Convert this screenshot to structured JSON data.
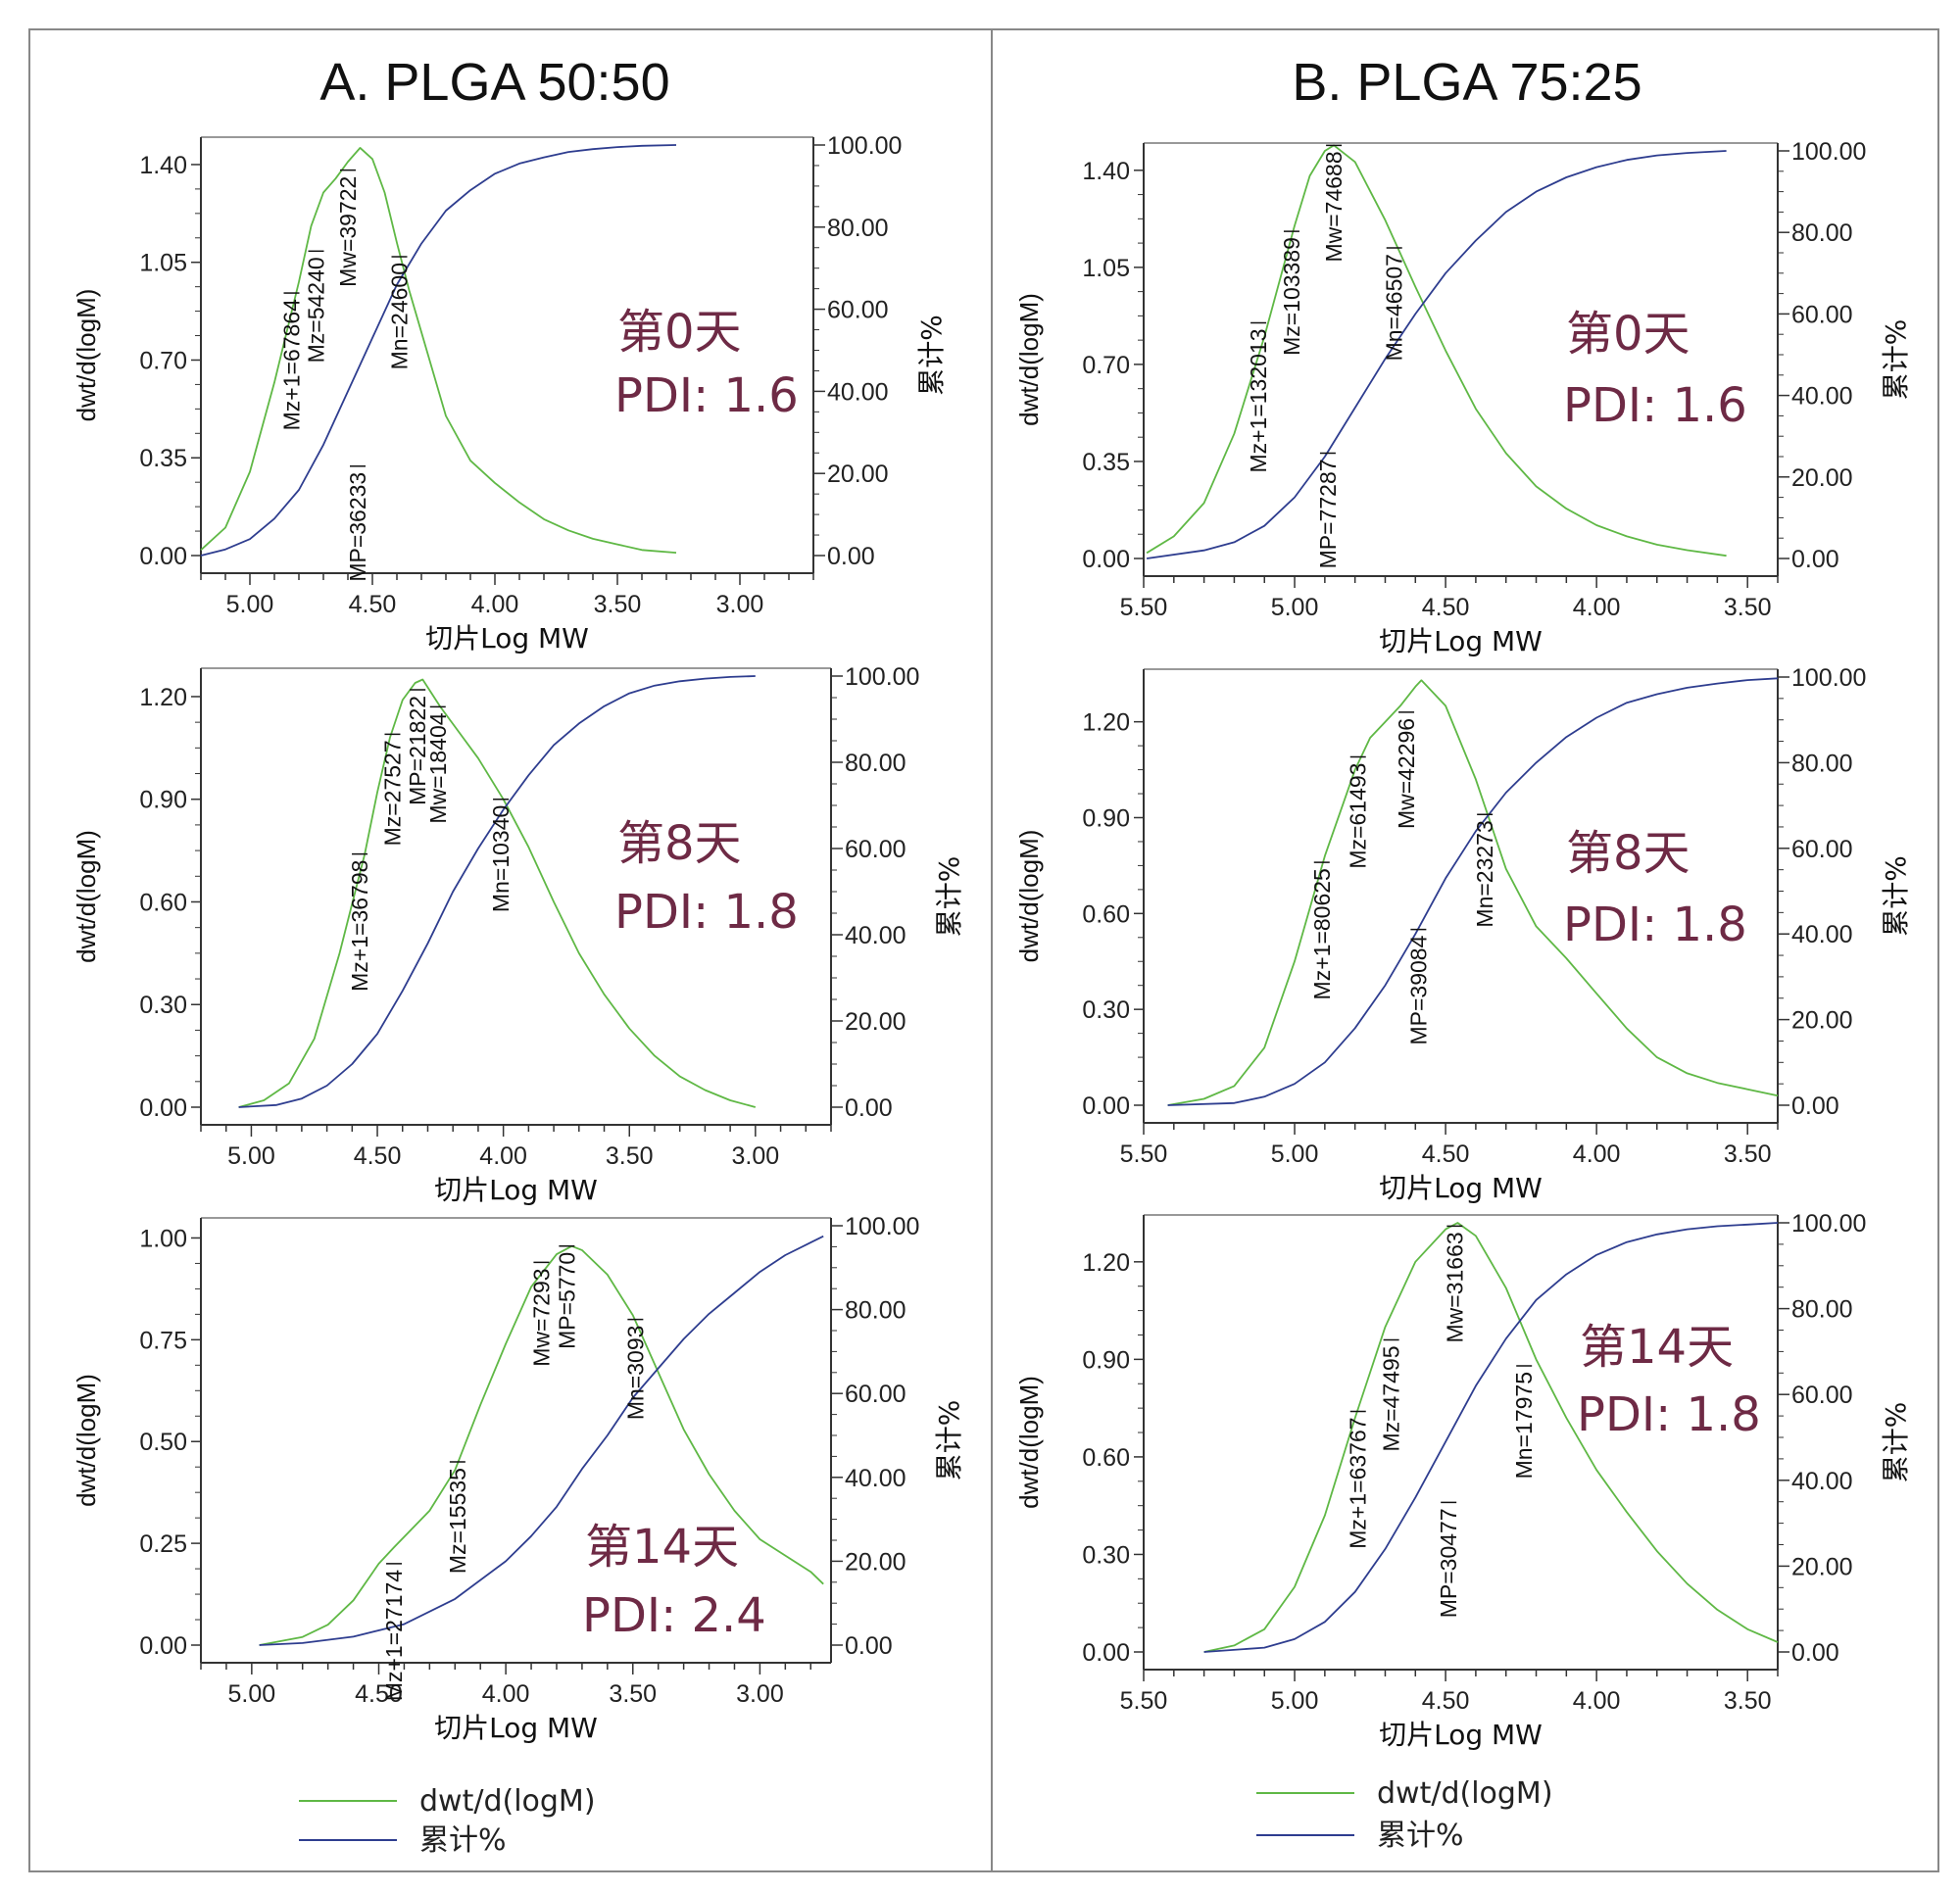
{
  "colors": {
    "dwt": "#5fb845",
    "cum": "#2e3d8f",
    "annotation": "#6e2a45",
    "border": "#888888"
  },
  "panels": [
    {
      "title": "A. PLGA 50:50",
      "legend": {
        "dwt": "dwt/d(logM)",
        "cum": "累计%"
      }
    },
    {
      "title": "B. PLGA 75:25",
      "legend": {
        "dwt": "dwt/d(logM)",
        "cum": "累计%"
      }
    }
  ],
  "chart_data": [
    {
      "type": "line",
      "panel": "A. PLGA 50:50",
      "day_label": "第0天",
      "pdi_label": "PDI: 1.6",
      "xlabel": "切片Log MW",
      "ylabel": "dwt/d(logM)",
      "y2label": "累计%",
      "x_reversed": true,
      "xlim": [
        5.2,
        2.7
      ],
      "xticks": [
        5.0,
        4.5,
        4.0,
        3.5,
        3.0
      ],
      "xtick_labels": [
        "5.00",
        "4.50",
        "4.00",
        "3.50",
        "3.00"
      ],
      "ylim": [
        0,
        1.47
      ],
      "yticks": [
        "0.00",
        "0.35",
        "0.70",
        "1.05",
        "1.40"
      ],
      "ytick_values": [
        0,
        0.35,
        0.7,
        1.05,
        1.4
      ],
      "y2lim": [
        0,
        100
      ],
      "y2ticks": [
        "0.00",
        "20.00",
        "40.00",
        "60.00",
        "80.00",
        "100.00"
      ],
      "series": [
        {
          "name": "dwt/d(logM)",
          "x": [
            5.2,
            5.1,
            5.0,
            4.9,
            4.8,
            4.75,
            4.7,
            4.65,
            4.6,
            4.55,
            4.5,
            4.45,
            4.4,
            4.35,
            4.3,
            4.2,
            4.1,
            4.0,
            3.9,
            3.8,
            3.7,
            3.6,
            3.5,
            3.4,
            3.26
          ],
          "y": [
            0.02,
            0.1,
            0.3,
            0.62,
            0.98,
            1.18,
            1.3,
            1.35,
            1.41,
            1.46,
            1.42,
            1.3,
            1.12,
            0.95,
            0.8,
            0.5,
            0.34,
            0.26,
            0.19,
            0.13,
            0.09,
            0.06,
            0.04,
            0.02,
            0.01
          ]
        },
        {
          "name": "累计%",
          "x": [
            5.2,
            5.1,
            5.0,
            4.9,
            4.8,
            4.7,
            4.6,
            4.5,
            4.4,
            4.3,
            4.2,
            4.1,
            4.0,
            3.9,
            3.8,
            3.7,
            3.6,
            3.5,
            3.4,
            3.26
          ],
          "y": [
            0,
            1.5,
            4,
            9,
            16,
            27,
            40,
            53,
            66,
            76,
            84,
            89,
            93,
            95.5,
            97,
            98.3,
            99,
            99.5,
            99.8,
            100
          ]
        }
      ],
      "markers": [
        {
          "label": "Mz+1=67864",
          "x": 4.83,
          "y": 0.94
        },
        {
          "label": "Mz=54240",
          "x": 4.73,
          "y": 1.09
        },
        {
          "label": "Mw=39722",
          "x": 4.6,
          "y": 1.38
        },
        {
          "label": "MP=36233",
          "x": 4.56,
          "y": 0.32
        },
        {
          "label": "Mn=24600",
          "x": 4.39,
          "y": 1.07
        }
      ]
    },
    {
      "type": "line",
      "panel": "A. PLGA 50:50",
      "day_label": "第8天",
      "pdi_label": "PDI: 1.8",
      "xlabel": "切片Log MW",
      "ylabel": "dwt/d(logM)",
      "y2label": "累计%",
      "x_reversed": true,
      "xlim": [
        5.2,
        2.7
      ],
      "xticks": [
        5.0,
        4.5,
        4.0,
        3.5,
        3.0
      ],
      "xtick_labels": [
        "5.00",
        "4.50",
        "4.00",
        "3.50",
        "3.00"
      ],
      "ylim": [
        0,
        1.26
      ],
      "yticks": [
        "0.00",
        "0.30",
        "0.60",
        "0.90",
        "1.20"
      ],
      "ytick_values": [
        0,
        0.3,
        0.6,
        0.9,
        1.2
      ],
      "y2lim": [
        0,
        100
      ],
      "y2ticks": [
        "0.00",
        "20.00",
        "40.00",
        "60.00",
        "80.00",
        "100.00"
      ],
      "series": [
        {
          "name": "dwt/d(logM)",
          "x": [
            5.05,
            4.95,
            4.85,
            4.75,
            4.65,
            4.55,
            4.5,
            4.45,
            4.4,
            4.35,
            4.32,
            4.25,
            4.2,
            4.1,
            4.0,
            3.9,
            3.8,
            3.7,
            3.6,
            3.5,
            3.4,
            3.3,
            3.2,
            3.1,
            3.0
          ],
          "y": [
            0.0,
            0.02,
            0.07,
            0.2,
            0.45,
            0.74,
            0.92,
            1.08,
            1.19,
            1.24,
            1.25,
            1.17,
            1.12,
            1.02,
            0.9,
            0.76,
            0.6,
            0.45,
            0.33,
            0.23,
            0.15,
            0.09,
            0.05,
            0.02,
            0.0
          ]
        },
        {
          "name": "累计%",
          "x": [
            5.05,
            4.9,
            4.8,
            4.7,
            4.6,
            4.5,
            4.4,
            4.3,
            4.2,
            4.1,
            4.0,
            3.9,
            3.8,
            3.7,
            3.6,
            3.5,
            3.4,
            3.3,
            3.2,
            3.1,
            3.0
          ],
          "y": [
            0,
            0.5,
            2,
            5,
            10,
            17,
            27,
            38,
            50,
            60,
            69,
            77,
            84,
            89,
            93,
            96,
            97.8,
            98.8,
            99.4,
            99.8,
            100
          ]
        }
      ],
      "markers": [
        {
          "label": "Mz+1=36798",
          "x": 4.57,
          "y": 0.74
        },
        {
          "label": "Mz=27527",
          "x": 4.44,
          "y": 1.09
        },
        {
          "label": "MP=21822",
          "x": 4.34,
          "y": 1.22
        },
        {
          "label": "Mw=18404",
          "x": 4.26,
          "y": 1.17
        },
        {
          "label": "Mn=10340",
          "x": 4.01,
          "y": 0.9
        }
      ]
    },
    {
      "type": "line",
      "panel": "A. PLGA 50:50",
      "day_label": "第14天",
      "pdi_label": "PDI: 2.4",
      "xlabel": "切片Log MW",
      "ylabel": "dwt/d(logM)",
      "y2label": "累计%",
      "x_reversed": true,
      "xlim": [
        5.2,
        2.72
      ],
      "xticks": [
        5.0,
        4.5,
        4.0,
        3.5,
        3.0
      ],
      "xtick_labels": [
        "5.00",
        "4.50",
        "4.00",
        "3.50",
        "3.00"
      ],
      "ylim": [
        0,
        1.03
      ],
      "yticks": [
        "0.00",
        "0.25",
        "0.50",
        "0.75",
        "1.00"
      ],
      "ytick_values": [
        0,
        0.25,
        0.5,
        0.75,
        1.0
      ],
      "y2lim": [
        0,
        100
      ],
      "y2ticks": [
        "0.00",
        "20.00",
        "40.00",
        "60.00",
        "80.00",
        "100.00"
      ],
      "series": [
        {
          "name": "dwt/d(logM)",
          "x": [
            4.97,
            4.8,
            4.7,
            4.6,
            4.5,
            4.44,
            4.3,
            4.2,
            4.1,
            4.0,
            3.9,
            3.8,
            3.74,
            3.7,
            3.6,
            3.5,
            3.4,
            3.3,
            3.2,
            3.1,
            3.0,
            2.9,
            2.8,
            2.75
          ],
          "y": [
            0.0,
            0.02,
            0.05,
            0.11,
            0.2,
            0.24,
            0.33,
            0.43,
            0.59,
            0.74,
            0.88,
            0.96,
            0.98,
            0.97,
            0.91,
            0.81,
            0.67,
            0.53,
            0.42,
            0.33,
            0.26,
            0.22,
            0.18,
            0.15
          ]
        },
        {
          "name": "累计%",
          "x": [
            4.97,
            4.8,
            4.6,
            4.4,
            4.2,
            4.0,
            3.9,
            3.8,
            3.7,
            3.6,
            3.5,
            3.4,
            3.3,
            3.2,
            3.1,
            3.0,
            2.9,
            2.8,
            2.75
          ],
          "y": [
            0,
            0.5,
            2,
            5,
            11,
            20,
            26,
            33,
            42,
            50,
            59,
            66,
            73,
            79,
            84,
            89,
            93,
            96,
            97.5
          ]
        }
      ],
      "markers": [
        {
          "label": "Mz+1=27174",
          "x": 4.44,
          "y": 0.2
        },
        {
          "label": "Mz=15535",
          "x": 4.19,
          "y": 0.45
        },
        {
          "label": "Mw=7293",
          "x": 3.86,
          "y": 0.94
        },
        {
          "label": "MP=5770",
          "x": 3.76,
          "y": 0.98
        },
        {
          "label": "Mn=3093",
          "x": 3.49,
          "y": 0.8
        }
      ]
    },
    {
      "type": "line",
      "panel": "B. PLGA 75:25",
      "day_label": "第0天",
      "pdi_label": "PDI: 1.6",
      "xlabel": "切片Log MW",
      "ylabel": "dwt/d(logM)",
      "y2label": "累计%",
      "x_reversed": true,
      "xlim": [
        5.5,
        3.4
      ],
      "xticks": [
        5.5,
        5.0,
        4.5,
        4.0,
        3.5
      ],
      "xtick_labels": [
        "5.50",
        "5.00",
        "4.50",
        "4.00",
        "3.50"
      ],
      "ylim": [
        0,
        1.47
      ],
      "yticks": [
        "0.00",
        "0.35",
        "0.70",
        "1.05",
        "1.40"
      ],
      "ytick_values": [
        0,
        0.35,
        0.7,
        1.05,
        1.4
      ],
      "y2lim": [
        0,
        100
      ],
      "y2ticks": [
        "0.00",
        "20.00",
        "40.00",
        "60.00",
        "80.00",
        "100.00"
      ],
      "series": [
        {
          "name": "dwt/d(logM)",
          "x": [
            5.49,
            5.4,
            5.3,
            5.2,
            5.1,
            5.0,
            4.95,
            4.9,
            4.87,
            4.8,
            4.7,
            4.6,
            4.5,
            4.4,
            4.3,
            4.2,
            4.1,
            4.0,
            3.9,
            3.8,
            3.7,
            3.57
          ],
          "y": [
            0.02,
            0.08,
            0.2,
            0.45,
            0.8,
            1.2,
            1.38,
            1.47,
            1.49,
            1.43,
            1.22,
            0.98,
            0.75,
            0.54,
            0.38,
            0.26,
            0.18,
            0.12,
            0.08,
            0.05,
            0.03,
            0.01
          ]
        },
        {
          "name": "累计%",
          "x": [
            5.49,
            5.3,
            5.2,
            5.1,
            5.0,
            4.9,
            4.8,
            4.7,
            4.6,
            4.5,
            4.4,
            4.3,
            4.2,
            4.1,
            4.0,
            3.9,
            3.8,
            3.7,
            3.57
          ],
          "y": [
            0,
            2,
            4,
            8,
            15,
            25,
            37,
            49,
            60,
            70,
            78,
            85,
            90,
            93.5,
            96,
            97.8,
            98.9,
            99.5,
            100
          ]
        }
      ],
      "markers": [
        {
          "label": "Mz+1=132013",
          "x": 5.12,
          "y": 0.85
        },
        {
          "label": "Mz=103389",
          "x": 5.01,
          "y": 1.18
        },
        {
          "label": "Mw=74688",
          "x": 4.87,
          "y": 1.49
        },
        {
          "label": "MP=77287",
          "x": 4.89,
          "y": 0.38
        },
        {
          "label": "Mn=46507",
          "x": 4.67,
          "y": 1.12
        }
      ]
    },
    {
      "type": "line",
      "panel": "B. PLGA 75:25",
      "day_label": "第8天",
      "pdi_label": "PDI: 1.8",
      "xlabel": "切片Log MW",
      "ylabel": "dwt/d(logM)",
      "y2label": "累计%",
      "x_reversed": true,
      "xlim": [
        5.5,
        3.4
      ],
      "xticks": [
        5.5,
        5.0,
        4.5,
        4.0,
        3.5
      ],
      "xtick_labels": [
        "5.50",
        "5.00",
        "4.50",
        "4.00",
        "3.50"
      ],
      "ylim": [
        0,
        1.34
      ],
      "yticks": [
        "0.00",
        "0.30",
        "0.60",
        "0.90",
        "1.20"
      ],
      "ytick_values": [
        0,
        0.3,
        0.6,
        0.9,
        1.2
      ],
      "y2lim": [
        0,
        100
      ],
      "y2ticks": [
        "0.00",
        "20.00",
        "40.00",
        "60.00",
        "80.00",
        "100.00"
      ],
      "series": [
        {
          "name": "dwt/d(logM)",
          "x": [
            5.42,
            5.3,
            5.2,
            5.1,
            5.0,
            4.9,
            4.8,
            4.75,
            4.7,
            4.65,
            4.6,
            4.58,
            4.5,
            4.4,
            4.35,
            4.3,
            4.2,
            4.1,
            4.0,
            3.9,
            3.8,
            3.7,
            3.6,
            3.5,
            3.4
          ],
          "y": [
            0.0,
            0.02,
            0.06,
            0.18,
            0.45,
            0.78,
            1.05,
            1.15,
            1.2,
            1.25,
            1.31,
            1.33,
            1.25,
            1.02,
            0.88,
            0.74,
            0.56,
            0.46,
            0.35,
            0.24,
            0.15,
            0.1,
            0.07,
            0.05,
            0.03
          ]
        },
        {
          "name": "累计%",
          "x": [
            5.42,
            5.2,
            5.1,
            5.0,
            4.9,
            4.8,
            4.7,
            4.6,
            4.5,
            4.4,
            4.3,
            4.2,
            4.1,
            4.0,
            3.9,
            3.8,
            3.7,
            3.6,
            3.5,
            3.4
          ],
          "y": [
            0,
            0.5,
            2,
            5,
            10,
            18,
            28,
            40,
            53,
            64,
            73,
            80,
            86,
            90.5,
            94,
            96,
            97.5,
            98.5,
            99.3,
            99.7
          ]
        }
      ],
      "markers": [
        {
          "label": "Mz+1=80625",
          "x": 4.91,
          "y": 0.76
        },
        {
          "label": "Mz=61493",
          "x": 4.79,
          "y": 1.09
        },
        {
          "label": "Mw=42296",
          "x": 4.63,
          "y": 1.23
        },
        {
          "label": "MP=39084",
          "x": 4.59,
          "y": 0.55
        },
        {
          "label": "Mn=23273",
          "x": 4.37,
          "y": 0.91
        }
      ]
    },
    {
      "type": "line",
      "panel": "B. PLGA 75:25",
      "day_label": "第14天",
      "pdi_label": "PDI: 1.8",
      "xlabel": "切片Log MW",
      "ylabel": "dwt/d(logM)",
      "y2label": "累计%",
      "x_reversed": true,
      "xlim": [
        5.5,
        3.4
      ],
      "xticks": [
        5.5,
        5.0,
        4.5,
        4.0,
        3.5
      ],
      "xtick_labels": [
        "5.50",
        "5.00",
        "4.50",
        "4.00",
        "3.50"
      ],
      "ylim": [
        0,
        1.32
      ],
      "yticks": [
        "0.00",
        "0.30",
        "0.60",
        "0.90",
        "1.20"
      ],
      "ytick_values": [
        0,
        0.3,
        0.6,
        0.9,
        1.2
      ],
      "y2lim": [
        0,
        100
      ],
      "y2ticks": [
        "0.00",
        "20.00",
        "40.00",
        "60.00",
        "80.00",
        "100.00"
      ],
      "series": [
        {
          "name": "dwt/d(logM)",
          "x": [
            5.3,
            5.2,
            5.1,
            5.0,
            4.9,
            4.8,
            4.7,
            4.6,
            4.5,
            4.46,
            4.4,
            4.3,
            4.2,
            4.1,
            4.0,
            3.9,
            3.8,
            3.7,
            3.6,
            3.5,
            3.4
          ],
          "y": [
            0.0,
            0.02,
            0.07,
            0.2,
            0.42,
            0.72,
            1.0,
            1.2,
            1.3,
            1.32,
            1.28,
            1.12,
            0.9,
            0.72,
            0.56,
            0.43,
            0.31,
            0.21,
            0.13,
            0.07,
            0.03
          ]
        },
        {
          "name": "累计%",
          "x": [
            5.3,
            5.1,
            5.0,
            4.9,
            4.8,
            4.7,
            4.6,
            4.5,
            4.4,
            4.3,
            4.2,
            4.1,
            4.0,
            3.9,
            3.8,
            3.7,
            3.6,
            3.5,
            3.4
          ],
          "y": [
            0,
            1,
            3,
            7,
            14,
            24,
            36,
            49,
            62,
            73,
            82,
            88,
            92.5,
            95.5,
            97.3,
            98.5,
            99.2,
            99.6,
            100
          ]
        }
      ],
      "markers": [
        {
          "label": "Mz+1=63767",
          "x": 4.79,
          "y": 0.74
        },
        {
          "label": "Mz=47495",
          "x": 4.68,
          "y": 0.96
        },
        {
          "label": "Mw=31663",
          "x": 4.47,
          "y": 1.31
        },
        {
          "label": "MP=30477",
          "x": 4.49,
          "y": 0.46
        },
        {
          "label": "Mn=17975",
          "x": 4.24,
          "y": 0.88
        }
      ]
    }
  ]
}
